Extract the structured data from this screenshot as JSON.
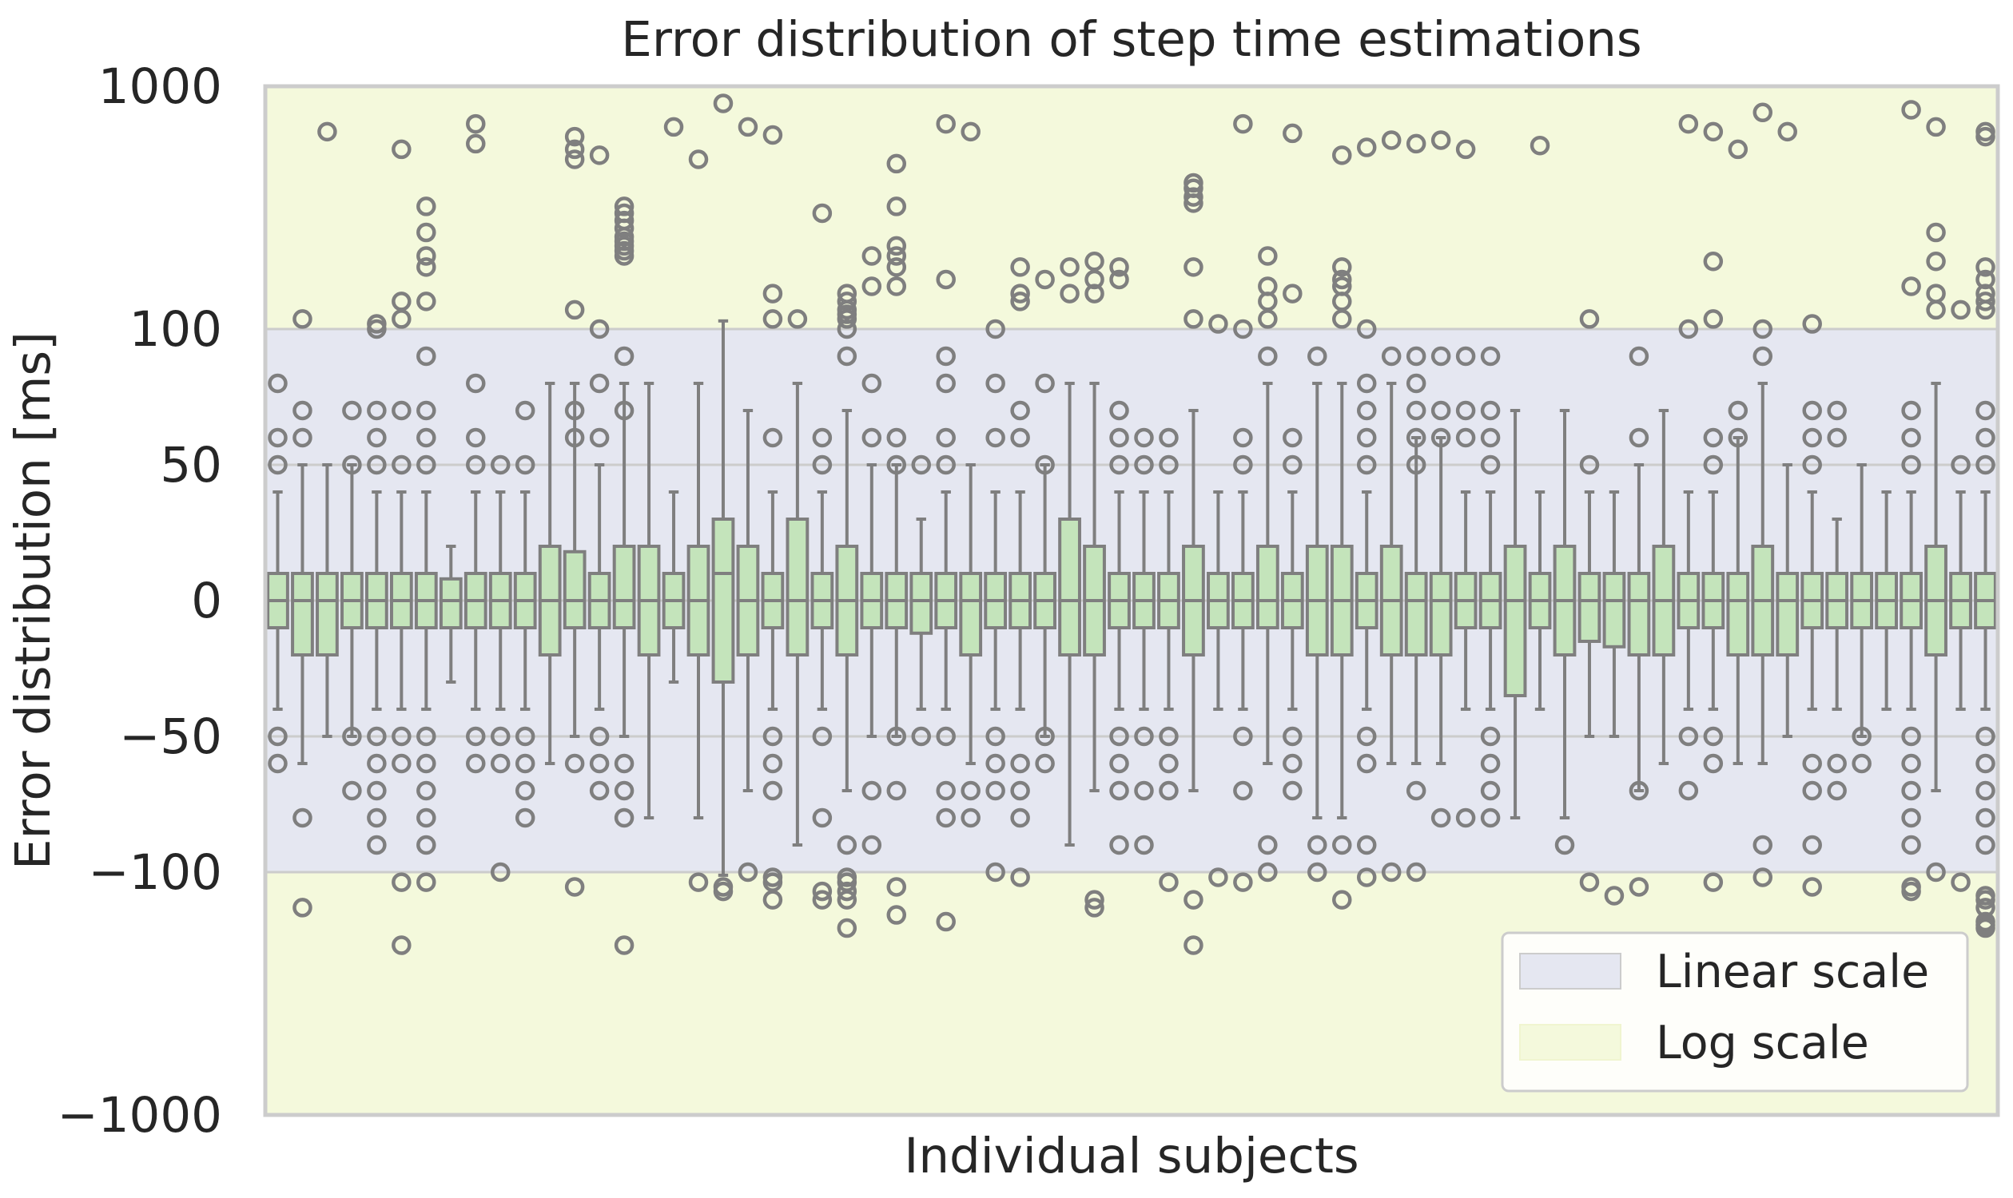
{
  "chart_data": {
    "type": "box",
    "title": "Error distribution of step time estimations",
    "xlabel": "Individual subjects",
    "ylabel": "Error distribution [ms]",
    "y_scale": "symmetric log: linear between -100 and 100, log beyond",
    "ylim": [
      -1000,
      1000
    ],
    "linear_range": [
      -100,
      100
    ],
    "yticks": [
      1000,
      100,
      50,
      0,
      -50,
      -100,
      -1000
    ],
    "ytick_labels": [
      "1000",
      "100",
      "50",
      "0",
      "−50",
      "−100",
      "−1000"
    ],
    "grid": true,
    "legend_position": "lower-right",
    "legend": [
      {
        "label": "Linear scale",
        "color": "#e5e7f1"
      },
      {
        "label": "Log scale",
        "color": "#f4f9dc"
      }
    ],
    "colors": {
      "box_fill": "#c4e4bb",
      "box_edge": "#7f7f7f",
      "linear_band": "#e5e7f1",
      "log_band": "#f4f9dc",
      "grid": "#cccccc"
    },
    "subjects": [
      {
        "q1": -10,
        "median": 0,
        "q3": 10,
        "whisker_low": -40,
        "whisker_high": 40,
        "outliers": [
          80,
          60,
          50,
          -50,
          -60
        ]
      },
      {
        "q1": -20,
        "median": 0,
        "q3": 10,
        "whisker_low": -60,
        "whisker_high": 50,
        "outliers": [
          110,
          70,
          60,
          -80,
          -140
        ]
      },
      {
        "q1": -20,
        "median": 0,
        "q3": 10,
        "whisker_low": -50,
        "whisker_high": 50,
        "outliers": [
          650
        ]
      },
      {
        "q1": -10,
        "median": 0,
        "q3": 10,
        "whisker_low": -50,
        "whisker_high": 50,
        "outliers": [
          70,
          50,
          -50,
          -70
        ]
      },
      {
        "q1": -10,
        "median": 0,
        "q3": 10,
        "whisker_low": -40,
        "whisker_high": 40,
        "outliers": [
          105,
          100,
          70,
          60,
          50,
          -50,
          -60,
          -70,
          -80,
          -90
        ]
      },
      {
        "q1": -10,
        "median": 0,
        "q3": 10,
        "whisker_low": -40,
        "whisker_high": 40,
        "outliers": [
          550,
          130,
          110,
          70,
          50,
          -50,
          -60,
          -110,
          -200
        ]
      },
      {
        "q1": -10,
        "median": 0,
        "q3": 10,
        "whisker_low": -40,
        "whisker_high": 40,
        "outliers": [
          320,
          250,
          200,
          180,
          130,
          90,
          70,
          60,
          50,
          -50,
          -60,
          -70,
          -80,
          -90,
          -110
        ]
      },
      {
        "q1": -10,
        "median": 0,
        "q3": 8,
        "whisker_low": -30,
        "whisker_high": 20,
        "outliers": []
      },
      {
        "q1": -10,
        "median": 0,
        "q3": 10,
        "whisker_low": -40,
        "whisker_high": 40,
        "outliers": [
          700,
          580,
          80,
          60,
          50,
          -50,
          -60
        ]
      },
      {
        "q1": -10,
        "median": 0,
        "q3": 10,
        "whisker_low": -40,
        "whisker_high": 40,
        "outliers": [
          50,
          -50,
          -60,
          -100
        ]
      },
      {
        "q1": -10,
        "median": 0,
        "q3": 10,
        "whisker_low": -40,
        "whisker_high": 40,
        "outliers": [
          70,
          50,
          -50,
          -60,
          -70,
          -80
        ]
      },
      {
        "q1": -20,
        "median": 0,
        "q3": 20,
        "whisker_low": -60,
        "whisker_high": 80,
        "outliers": []
      },
      {
        "q1": -10,
        "median": 0,
        "q3": 18,
        "whisker_low": -50,
        "whisker_high": 80,
        "outliers": [
          620,
          550,
          500,
          120,
          70,
          60,
          -60,
          -115
        ]
      },
      {
        "q1": -10,
        "median": 0,
        "q3": 10,
        "whisker_low": -40,
        "whisker_high": 50,
        "outliers": [
          520,
          100,
          80,
          60,
          -50,
          -60,
          -70
        ]
      },
      {
        "q1": -10,
        "median": 0,
        "q3": 20,
        "whisker_low": -50,
        "whisker_high": 80,
        "outliers": [
          320,
          300,
          280,
          260,
          240,
          230,
          220,
          210,
          200,
          90,
          70,
          -60,
          -70,
          -80,
          -200
        ]
      },
      {
        "q1": -20,
        "median": 0,
        "q3": 20,
        "whisker_low": -80,
        "whisker_high": 80,
        "outliers": []
      },
      {
        "q1": -10,
        "median": 0,
        "q3": 10,
        "whisker_low": -30,
        "whisker_high": 40,
        "outliers": [
          680
        ]
      },
      {
        "q1": -20,
        "median": 0,
        "q3": 20,
        "whisker_low": -80,
        "whisker_high": 80,
        "outliers": [
          500,
          -110
        ]
      },
      {
        "q1": -30,
        "median": 10,
        "q3": 30,
        "whisker_low": -103,
        "whisker_high": 108,
        "outliers": [
          850,
          -115,
          -120
        ]
      },
      {
        "q1": -20,
        "median": 0,
        "q3": 20,
        "whisker_low": -70,
        "whisker_high": 70,
        "outliers": [
          680,
          -100
        ]
      },
      {
        "q1": -10,
        "median": 0,
        "q3": 10,
        "whisker_low": -40,
        "whisker_high": 40,
        "outliers": [
          630,
          140,
          110,
          60,
          -50,
          -60,
          -70,
          -105,
          -110,
          -130
        ]
      },
      {
        "q1": -20,
        "median": 0,
        "q3": 30,
        "whisker_low": -90,
        "whisker_high": 80,
        "outliers": [
          110
        ]
      },
      {
        "q1": -10,
        "median": 0,
        "q3": 10,
        "whisker_low": -40,
        "whisker_high": 40,
        "outliers": [
          300,
          60,
          50,
          -50,
          -80,
          -120,
          -130
        ]
      },
      {
        "q1": -20,
        "median": 0,
        "q3": 20,
        "whisker_low": -70,
        "whisker_high": 70,
        "outliers": [
          140,
          130,
          120,
          115,
          110,
          100,
          90,
          -90,
          -105,
          -110,
          -120,
          -130,
          -170
        ]
      },
      {
        "q1": -10,
        "median": 0,
        "q3": 10,
        "whisker_low": -50,
        "whisker_high": 50,
        "outliers": [
          200,
          150,
          80,
          60,
          -70,
          -90
        ]
      },
      {
        "q1": -10,
        "median": 0,
        "q3": 10,
        "whisker_low": -50,
        "whisker_high": 50,
        "outliers": [
          480,
          320,
          220,
          200,
          180,
          150,
          60,
          50,
          -50,
          -70,
          -115,
          -150
        ]
      },
      {
        "q1": -12,
        "median": 0,
        "q3": 10,
        "whisker_low": -40,
        "whisker_high": 30,
        "outliers": [
          50,
          -50
        ]
      },
      {
        "q1": -10,
        "median": 0,
        "q3": 10,
        "whisker_low": -40,
        "whisker_high": 40,
        "outliers": [
          700,
          160,
          90,
          80,
          60,
          50,
          -50,
          -70,
          -80,
          -160
        ]
      },
      {
        "q1": -20,
        "median": 0,
        "q3": 10,
        "whisker_low": -60,
        "whisker_high": 50,
        "outliers": [
          650,
          -70,
          -80
        ]
      },
      {
        "q1": -10,
        "median": 0,
        "q3": 10,
        "whisker_low": -40,
        "whisker_high": 40,
        "outliers": [
          100,
          80,
          60,
          -50,
          -60,
          -70,
          -100
        ]
      },
      {
        "q1": -10,
        "median": 0,
        "q3": 10,
        "whisker_low": -40,
        "whisker_high": 40,
        "outliers": [
          180,
          140,
          130,
          70,
          60,
          -60,
          -70,
          -80,
          -105
        ]
      },
      {
        "q1": -10,
        "median": 0,
        "q3": 10,
        "whisker_low": -50,
        "whisker_high": 50,
        "outliers": [
          160,
          80,
          50,
          -50,
          -60
        ]
      },
      {
        "q1": -20,
        "median": 0,
        "q3": 30,
        "whisker_low": -90,
        "whisker_high": 80,
        "outliers": [
          180,
          140
        ]
      },
      {
        "q1": -20,
        "median": 0,
        "q3": 20,
        "whisker_low": -70,
        "whisker_high": 80,
        "outliers": [
          190,
          160,
          140,
          -130,
          -140
        ]
      },
      {
        "q1": -10,
        "median": 0,
        "q3": 10,
        "whisker_low": -40,
        "whisker_high": 40,
        "outliers": [
          180,
          160,
          70,
          60,
          50,
          -50,
          -60,
          -70,
          -90
        ]
      },
      {
        "q1": -10,
        "median": 0,
        "q3": 10,
        "whisker_low": -40,
        "whisker_high": 40,
        "outliers": [
          60,
          50,
          -50,
          -70,
          -90
        ]
      },
      {
        "q1": -10,
        "median": 0,
        "q3": 10,
        "whisker_low": -40,
        "whisker_high": 40,
        "outliers": [
          60,
          50,
          -50,
          -60,
          -70,
          -110
        ]
      },
      {
        "q1": -20,
        "median": 0,
        "q3": 20,
        "whisker_low": -70,
        "whisker_high": 70,
        "outliers": [
          400,
          380,
          350,
          330,
          180,
          110,
          -130,
          -200
        ]
      },
      {
        "q1": -10,
        "median": 0,
        "q3": 10,
        "whisker_low": -40,
        "whisker_high": 40,
        "outliers": [
          105,
          -105
        ]
      },
      {
        "q1": -10,
        "median": 0,
        "q3": 10,
        "whisker_low": -40,
        "whisker_high": 40,
        "outliers": [
          700,
          100,
          60,
          50,
          -50,
          -70,
          -110
        ]
      },
      {
        "q1": -10,
        "median": 0,
        "q3": 20,
        "whisker_low": -60,
        "whisker_high": 80,
        "outliers": [
          200,
          150,
          130,
          110,
          90,
          -90,
          -100
        ]
      },
      {
        "q1": -10,
        "median": 0,
        "q3": 10,
        "whisker_low": -40,
        "whisker_high": 40,
        "outliers": [
          640,
          140,
          60,
          50,
          -50,
          -60,
          -70
        ]
      },
      {
        "q1": -20,
        "median": 0,
        "q3": 20,
        "whisker_low": -80,
        "whisker_high": 80,
        "outliers": [
          90,
          -90,
          -100
        ]
      },
      {
        "q1": -20,
        "median": 0,
        "q3": 20,
        "whisker_low": -80,
        "whisker_high": 80,
        "outliers": [
          520,
          180,
          160,
          150,
          130,
          110,
          -90,
          -130
        ]
      },
      {
        "q1": -10,
        "median": 0,
        "q3": 10,
        "whisker_low": -40,
        "whisker_high": 40,
        "outliers": [
          560,
          100,
          80,
          70,
          60,
          50,
          -50,
          -60,
          -90,
          -105
        ]
      },
      {
        "q1": -20,
        "median": 0,
        "q3": 20,
        "whisker_low": -60,
        "whisker_high": 80,
        "outliers": [
          600,
          90,
          -100
        ]
      },
      {
        "q1": -20,
        "median": 0,
        "q3": 10,
        "whisker_low": -60,
        "whisker_high": 60,
        "outliers": [
          580,
          90,
          80,
          70,
          60,
          50,
          -70,
          -100
        ]
      },
      {
        "q1": -20,
        "median": 0,
        "q3": 10,
        "whisker_low": -60,
        "whisker_high": 60,
        "outliers": [
          600,
          90,
          70,
          60,
          -80
        ]
      },
      {
        "q1": -10,
        "median": 0,
        "q3": 10,
        "whisker_low": -40,
        "whisker_high": 40,
        "outliers": [
          550,
          90,
          70,
          60,
          -80
        ]
      },
      {
        "q1": -10,
        "median": 0,
        "q3": 10,
        "whisker_low": -40,
        "whisker_high": 40,
        "outliers": [
          90,
          70,
          60,
          50,
          -50,
          -60,
          -70,
          -80
        ]
      },
      {
        "q1": -35,
        "median": 0,
        "q3": 20,
        "whisker_low": -80,
        "whisker_high": 70,
        "outliers": []
      },
      {
        "q1": -10,
        "median": 0,
        "q3": 10,
        "whisker_low": -40,
        "whisker_high": 40,
        "outliers": [
          570
        ]
      },
      {
        "q1": -20,
        "median": 0,
        "q3": 20,
        "whisker_low": -80,
        "whisker_high": 70,
        "outliers": [
          -90
        ]
      },
      {
        "q1": -15,
        "median": 0,
        "q3": 10,
        "whisker_low": -50,
        "whisker_high": 40,
        "outliers": [
          110,
          50,
          -110
        ]
      },
      {
        "q1": -17,
        "median": 0,
        "q3": 10,
        "whisker_low": -50,
        "whisker_high": 40,
        "outliers": [
          -125
        ]
      },
      {
        "q1": -20,
        "median": 0,
        "q3": 10,
        "whisker_low": -70,
        "whisker_high": 50,
        "outliers": [
          90,
          60,
          -70,
          -115
        ]
      },
      {
        "q1": -20,
        "median": 0,
        "q3": 20,
        "whisker_low": -60,
        "whisker_high": 70,
        "outliers": []
      },
      {
        "q1": -10,
        "median": 0,
        "q3": 10,
        "whisker_low": -40,
        "whisker_high": 40,
        "outliers": [
          700,
          100,
          -50,
          -70
        ]
      },
      {
        "q1": -10,
        "median": 0,
        "q3": 10,
        "whisker_low": -40,
        "whisker_high": 40,
        "outliers": [
          650,
          190,
          110,
          60,
          50,
          -50,
          -60,
          -110
        ]
      },
      {
        "q1": -20,
        "median": 0,
        "q3": 10,
        "whisker_low": -60,
        "whisker_high": 60,
        "outliers": [
          550,
          70,
          60
        ]
      },
      {
        "q1": -20,
        "median": 0,
        "q3": 20,
        "whisker_low": -60,
        "whisker_high": 80,
        "outliers": [
          780,
          100,
          90,
          -90,
          -105
        ]
      },
      {
        "q1": -20,
        "median": 0,
        "q3": 10,
        "whisker_low": -50,
        "whisker_high": 50,
        "outliers": [
          650
        ]
      },
      {
        "q1": -10,
        "median": 0,
        "q3": 10,
        "whisker_low": -40,
        "whisker_high": 40,
        "outliers": [
          105,
          70,
          60,
          50,
          -60,
          -70,
          -90,
          -115
        ]
      },
      {
        "q1": -10,
        "median": 0,
        "q3": 10,
        "whisker_low": -40,
        "whisker_high": 30,
        "outliers": [
          70,
          60,
          -60,
          -70
        ]
      },
      {
        "q1": -10,
        "median": 0,
        "q3": 10,
        "whisker_low": -50,
        "whisker_high": 50,
        "outliers": [
          -50,
          -60
        ]
      },
      {
        "q1": -10,
        "median": 0,
        "q3": 10,
        "whisker_low": -40,
        "whisker_high": 40,
        "outliers": []
      },
      {
        "q1": -10,
        "median": 0,
        "q3": 10,
        "whisker_low": -40,
        "whisker_high": 40,
        "outliers": [
          800,
          150,
          70,
          60,
          50,
          -50,
          -60,
          -70,
          -80,
          -90,
          -115,
          -120
        ]
      },
      {
        "q1": -20,
        "median": 0,
        "q3": 20,
        "whisker_low": -70,
        "whisker_high": 80,
        "outliers": [
          680,
          250,
          190,
          140,
          120,
          -100
        ]
      },
      {
        "q1": -10,
        "median": 0,
        "q3": 10,
        "whisker_low": -40,
        "whisker_high": 40,
        "outliers": [
          120,
          50,
          -110
        ]
      },
      {
        "q1": -10,
        "median": 0,
        "q3": 10,
        "whisker_low": -40,
        "whisker_high": 40,
        "outliers": [
          650,
          620,
          180,
          160,
          140,
          130,
          120,
          70,
          60,
          50,
          -50,
          -60,
          -70,
          -80,
          -90,
          -125,
          -130,
          -140,
          -160,
          -165,
          -170
        ]
      }
    ]
  }
}
